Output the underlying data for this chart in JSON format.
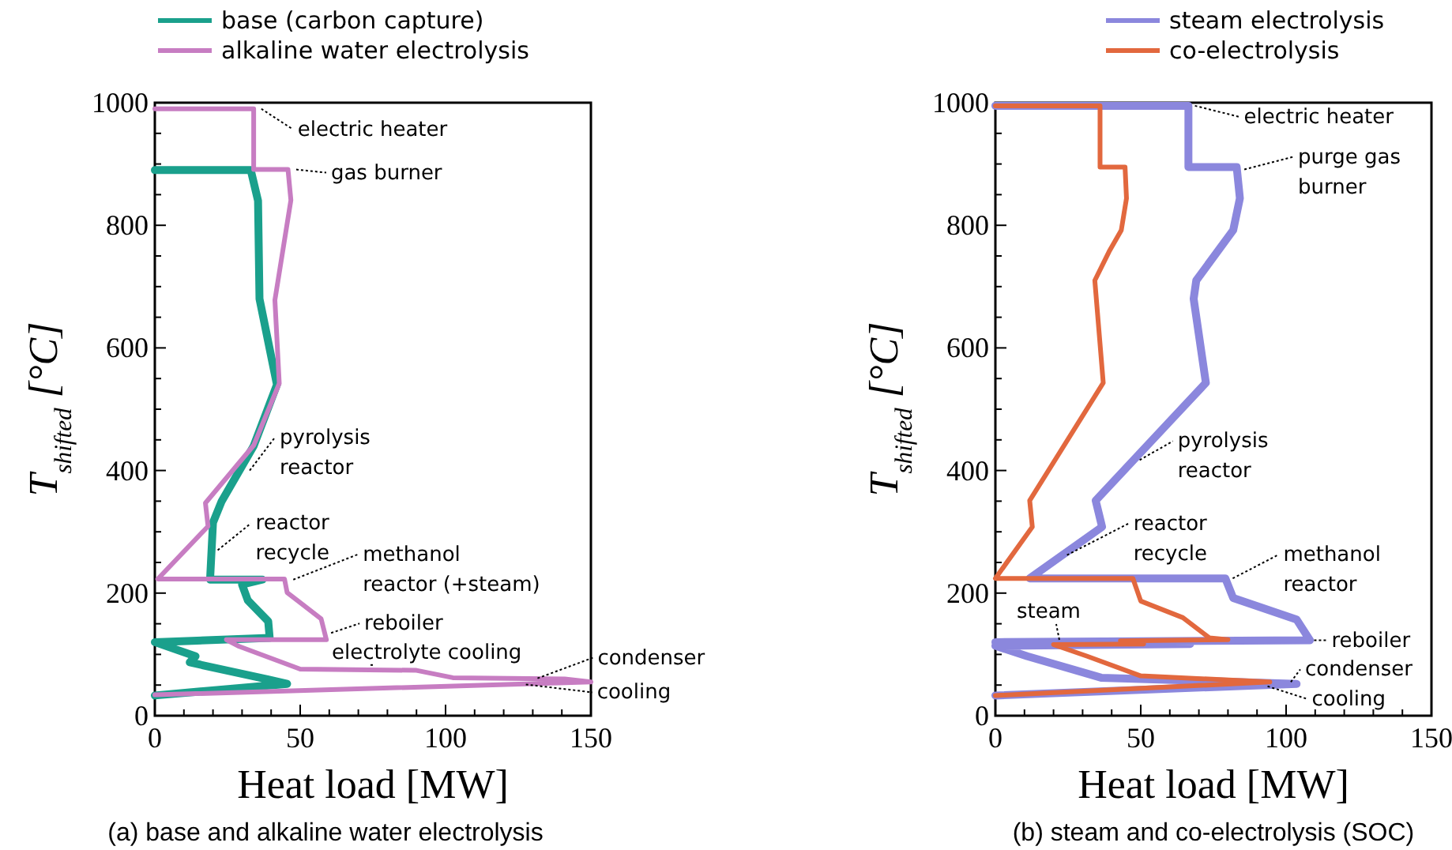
{
  "chart_data": [
    {
      "type": "line",
      "xlabel": "Heat load [MW]",
      "ylabel": "T$_{shifted}$ [°C]",
      "legend": "top left",
      "line_style": "solid",
      "marker": "none",
      "grid": false,
      "xlim": [
        0,
        150
      ],
      "ylim": [
        0,
        1000
      ],
      "xticks": [
        0,
        {
          "value": 10,
          "label": null
        },
        {
          "value": 20,
          "label": null
        },
        {
          "value": 30,
          "label": null
        },
        {
          "value": 40,
          "label": null
        },
        50,
        {
          "value": 60,
          "label": null
        },
        {
          "value": 70,
          "label": null
        },
        {
          "value": 80,
          "label": null
        },
        {
          "value": 90,
          "label": null
        },
        100,
        {
          "value": 110,
          "label": null
        },
        {
          "value": 120,
          "label": null
        },
        {
          "value": 130,
          "label": null
        },
        {
          "value": 140,
          "label": null
        },
        150
      ],
      "yticks": [
        0,
        {
          "value": 50,
          "label": null
        },
        {
          "value": 100,
          "label": null
        },
        {
          "value": 150,
          "label": null
        },
        200,
        {
          "value": 250,
          "label": null
        },
        {
          "value": 300,
          "label": null
        },
        {
          "value": 350,
          "label": null
        },
        400,
        {
          "value": 450,
          "label": null
        },
        {
          "value": 500,
          "label": null
        },
        {
          "value": 550,
          "label": null
        },
        600,
        {
          "value": 650,
          "label": null
        },
        {
          "value": 700,
          "label": null
        },
        {
          "value": 750,
          "label": null
        },
        800,
        {
          "value": 850,
          "label": null
        },
        {
          "value": 900,
          "label": null
        },
        {
          "value": 950,
          "label": null
        },
        1000
      ],
      "series": [
        {
          "name": "base (carbon capture)",
          "color": "#1aa08c",
          "x": [
            0,
            33,
            35.5,
            36,
            42,
            34,
            23,
            20,
            19,
            37,
            30,
            32,
            39,
            39.5,
            0,
            14,
            12,
            39,
            45.5,
            0
          ],
          "values": [
            890,
            890,
            840,
            680,
            540,
            440,
            350,
            315,
            222,
            222,
            214,
            188,
            154,
            127,
            120,
            97,
            87,
            59,
            52,
            33
          ]
        },
        {
          "name": "alkaline water electrolysis",
          "color": "#c77dc2",
          "x": [
            0,
            34,
            34,
            45.8,
            46.8,
            41.3,
            42.8,
            34,
            17.4,
            18.3,
            1,
            44.6,
            45.5,
            57.2,
            59,
            24.6,
            29,
            50,
            90,
            102.5,
            141,
            150,
            0
          ],
          "values": [
            990,
            990,
            891,
            891,
            841,
            678,
            542,
            441,
            347,
            309,
            223,
            223,
            201,
            158,
            124,
            124,
            113,
            76,
            74,
            62,
            60,
            55,
            34
          ]
        }
      ],
      "annotations": [
        {
          "text": "electric heater",
          "x": 35,
          "y": 990
        },
        {
          "text": "gas burner",
          "x": 47,
          "y": 891
        },
        {
          "text": "pyrolysis\nreactor",
          "x": 31,
          "y": 400
        },
        {
          "text": "reactor\nrecycle",
          "x": 20,
          "y": 270
        },
        {
          "text": "methanol\nreactor (+steam)",
          "x": 46,
          "y": 222
        },
        {
          "text": "reboiler",
          "x": 59,
          "y": 135
        },
        {
          "text": "electrolyte cooling",
          "x": 75,
          "y": 75
        },
        {
          "text": "condenser",
          "x": 130,
          "y": 61
        },
        {
          "text": "cooling",
          "x": 126,
          "y": 51
        },
        "(a) base and alkaline water electrolysis"
      ]
    },
    {
      "type": "line",
      "xlabel": "Heat load [MW]",
      "ylabel": "T$_{shifted}$ [°C]",
      "legend": "top",
      "line_style": "solid",
      "marker": "none",
      "grid": false,
      "xlim": [
        0,
        150
      ],
      "ylim": [
        0,
        1000
      ],
      "xticks": [
        0,
        {
          "value": 10,
          "label": null
        },
        {
          "value": 20,
          "label": null
        },
        {
          "value": 30,
          "label": null
        },
        {
          "value": 40,
          "label": null
        },
        50,
        {
          "value": 60,
          "label": null
        },
        {
          "value": 70,
          "label": null
        },
        {
          "value": 80,
          "label": null
        },
        {
          "value": 90,
          "label": null
        },
        100,
        {
          "value": 110,
          "label": null
        },
        {
          "value": 120,
          "label": null
        },
        {
          "value": 130,
          "label": null
        },
        {
          "value": 140,
          "label": null
        },
        150
      ],
      "yticks": [
        0,
        {
          "value": 50,
          "label": null
        },
        {
          "value": 100,
          "label": null
        },
        {
          "value": 150,
          "label": null
        },
        200,
        {
          "value": 250,
          "label": null
        },
        {
          "value": 300,
          "label": null
        },
        {
          "value": 350,
          "label": null
        },
        400,
        {
          "value": 450,
          "label": null
        },
        {
          "value": 500,
          "label": null
        },
        {
          "value": 550,
          "label": null
        },
        600,
        {
          "value": 650,
          "label": null
        },
        {
          "value": 700,
          "label": null
        },
        {
          "value": 750,
          "label": null
        },
        800,
        {
          "value": 850,
          "label": null
        },
        {
          "value": 900,
          "label": null
        },
        {
          "value": 950,
          "label": null
        },
        1000
      ],
      "series": [
        {
          "name": "steam electrolysis",
          "color": "#8b87dd",
          "x": [
            0,
            66.4,
            66.4,
            83,
            84.1,
            81.8,
            69.1,
            68.2,
            72.4,
            34.5,
            36.7,
            11.8,
            79.1,
            81.8,
            103.6,
            108.2,
            0,
            67,
            0,
            11,
            36.4,
            103.6,
            0
          ],
          "values": [
            995,
            995,
            895,
            895,
            844,
            792,
            710,
            680,
            543,
            351,
            308,
            224,
            224,
            192,
            157,
            123,
            120,
            117,
            114,
            97,
            62,
            52,
            33
          ]
        },
        {
          "name": "co-electrolysis",
          "color": "#e2683e",
          "x": [
            0,
            36,
            36,
            44.6,
            45.1,
            43.3,
            39.1,
            34.2,
            37.1,
            11.8,
            12.7,
            0,
            47.3,
            50,
            64.5,
            73.6,
            80,
            43,
            51,
            20,
            31.6,
            50,
            94.4,
            0
          ],
          "values": [
            995,
            995,
            895,
            895,
            844,
            792,
            757,
            710,
            543,
            351,
            308,
            224,
            224,
            187,
            160,
            127,
            124,
            122,
            117,
            116,
            97,
            65,
            55,
            33
          ]
        }
      ],
      "annotations": [
        {
          "text": "electric heater",
          "x": 67,
          "y": 995
        },
        {
          "text": "purge gas\nburner",
          "x": 84,
          "y": 891
        },
        {
          "text": "pyrolysis\nreactor",
          "x": 48,
          "y": 417
        },
        {
          "text": "reactor\nrecycle",
          "x": 23,
          "y": 262
        },
        {
          "text": "methanol\nreactor",
          "x": 80,
          "y": 224
        },
        {
          "text": "reboiler",
          "x": 108,
          "y": 123
        },
        {
          "text": "steam",
          "x": 22,
          "y": 116
        },
        {
          "text": "condenser",
          "x": 100,
          "y": 55
        },
        {
          "text": "cooling",
          "x": 92,
          "y": 48
        },
        "(b) steam and co-electrolysis (SOC)"
      ]
    }
  ]
}
